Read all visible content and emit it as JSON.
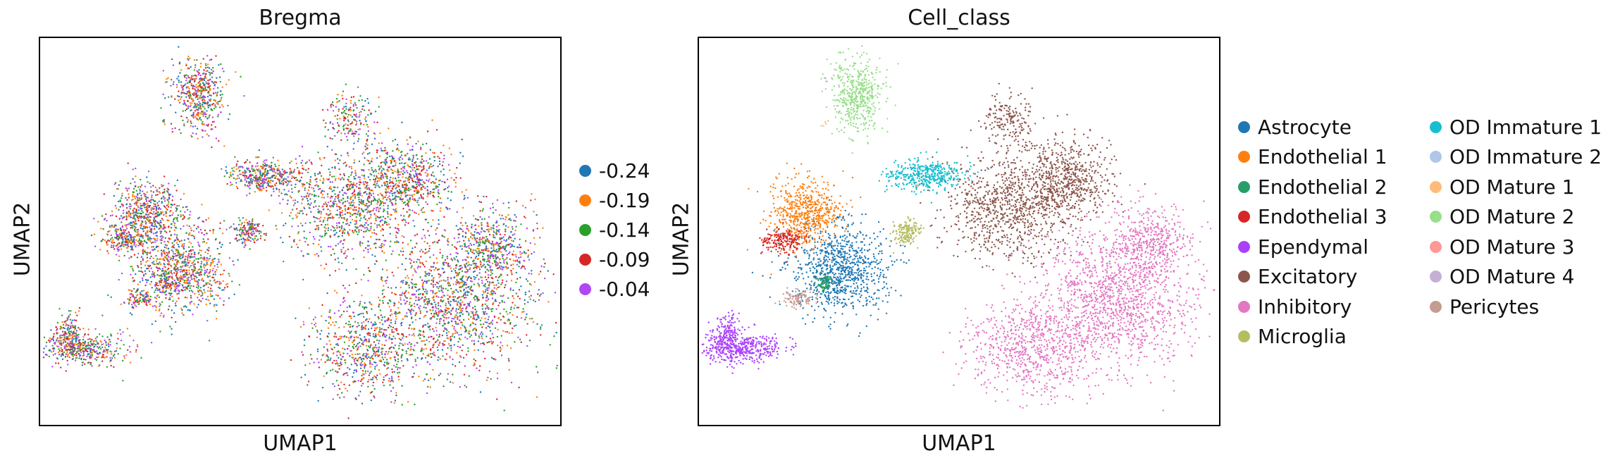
{
  "chart_data": [
    {
      "type": "scatter",
      "title": "Bregma",
      "xlabel": "UMAP1",
      "ylabel": "UMAP2",
      "legend_position": "right",
      "grid": false,
      "ticks": false,
      "categories": [
        "-0.24",
        "-0.19",
        "-0.14",
        "-0.09",
        "-0.04"
      ],
      "colors": [
        "#1f77b4",
        "#ff7f0e",
        "#2ca02c",
        "#d62728",
        "#b147f0"
      ]
    },
    {
      "type": "scatter",
      "title": "Cell_class",
      "xlabel": "UMAP1",
      "ylabel": "UMAP2",
      "legend_position": "right",
      "grid": false,
      "ticks": false,
      "categories": [
        "Astrocyte",
        "Endothelial 1",
        "Endothelial 2",
        "Endothelial 3",
        "Ependymal",
        "Excitatory",
        "Inhibitory",
        "Microglia",
        "OD Immature 1",
        "OD Immature 2",
        "OD Mature 1",
        "OD Mature 2",
        "OD Mature 3",
        "OD Mature 4",
        "Pericytes"
      ],
      "colors": [
        "#1f77b4",
        "#ff7f0e",
        "#279e68",
        "#d62728",
        "#aa40fc",
        "#8c564b",
        "#e377c2",
        "#b5bd61",
        "#17becf",
        "#aec7e8",
        "#ffbb78",
        "#98df8a",
        "#ff9896",
        "#c5b0d5",
        "#c49c94"
      ]
    }
  ]
}
